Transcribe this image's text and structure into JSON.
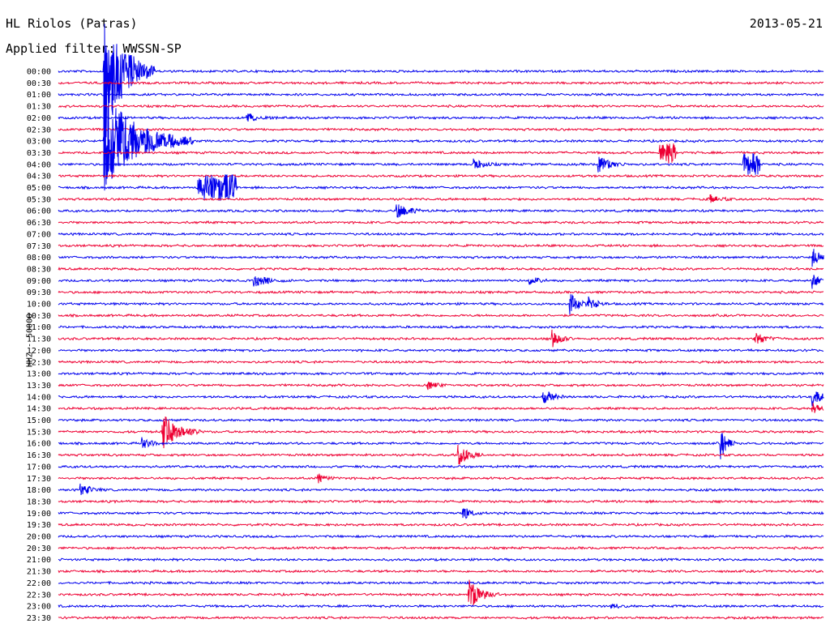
{
  "header": {
    "station": "HL Riolos (Patras)",
    "date": "2013-05-21",
    "filter": "Applied filter: WWSSN-SP"
  },
  "chart_data": {
    "type": "line",
    "title": "HL Riolos (Patras)",
    "subtitle": "Applied filter: WWSSN-SP",
    "ylabel": "HHZ - 50000",
    "xlabel": "",
    "rows": [
      "00:00",
      "00:30",
      "01:00",
      "01:30",
      "02:00",
      "02:30",
      "03:00",
      "03:30",
      "04:00",
      "04:30",
      "05:00",
      "05:30",
      "06:00",
      "06:30",
      "07:00",
      "07:30",
      "08:00",
      "08:30",
      "09:00",
      "09:30",
      "10:00",
      "10:30",
      "11:00",
      "11:30",
      "12:00",
      "12:30",
      "13:00",
      "13:30",
      "14:00",
      "14:30",
      "15:00",
      "15:30",
      "16:00",
      "16:30",
      "17:00",
      "17:30",
      "18:00",
      "18:30",
      "19:00",
      "19:30",
      "20:00",
      "20:30",
      "21:00",
      "21:30",
      "22:00",
      "22:30",
      "23:00",
      "23:30"
    ],
    "series_colors": [
      "#0000ee",
      "#ee0033"
    ],
    "row_minutes": 30,
    "events": [
      {
        "row": 0,
        "minute": 1.8,
        "amp": 90,
        "dur": 2.0
      },
      {
        "row": 6,
        "minute": 1.8,
        "amp": 60,
        "dur": 3.5
      },
      {
        "row": 4,
        "minute": 7.4,
        "amp": 5,
        "dur": 1.2
      },
      {
        "row": 8,
        "minute": 16.3,
        "amp": 6,
        "dur": 1.0
      },
      {
        "row": 8,
        "minute": 21.2,
        "amp": 9,
        "dur": 1.2
      },
      {
        "row": 10,
        "minute": 5.5,
        "amp": 15,
        "dur": 1.5,
        "block": true
      },
      {
        "row": 7,
        "minute": 23.6,
        "amp": 12,
        "dur": 0.6,
        "block": true
      },
      {
        "row": 8,
        "minute": 26.9,
        "amp": 13,
        "dur": 0.6,
        "block": true
      },
      {
        "row": 11,
        "minute": 25.5,
        "amp": 5,
        "dur": 1.0
      },
      {
        "row": 12,
        "minute": 13.3,
        "amp": 8,
        "dur": 1.2
      },
      {
        "row": 16,
        "minute": 29.6,
        "amp": 10,
        "dur": 0.8
      },
      {
        "row": 18,
        "minute": 7.7,
        "amp": 6,
        "dur": 1.5
      },
      {
        "row": 18,
        "minute": 18.5,
        "amp": 6,
        "dur": 0.8
      },
      {
        "row": 18,
        "minute": 29.6,
        "amp": 8,
        "dur": 0.6
      },
      {
        "row": 20,
        "minute": 20.1,
        "amp": 12,
        "dur": 0.8
      },
      {
        "row": 20,
        "minute": 20.8,
        "amp": 8,
        "dur": 0.8
      },
      {
        "row": 23,
        "minute": 19.4,
        "amp": 9,
        "dur": 0.8
      },
      {
        "row": 23,
        "minute": 27.3,
        "amp": 7,
        "dur": 1.2
      },
      {
        "row": 27,
        "minute": 14.5,
        "amp": 5,
        "dur": 1.0
      },
      {
        "row": 28,
        "minute": 19.0,
        "amp": 12,
        "dur": 0.8
      },
      {
        "row": 28,
        "minute": 29.6,
        "amp": 10,
        "dur": 0.8
      },
      {
        "row": 29,
        "minute": 29.6,
        "amp": 6,
        "dur": 0.8
      },
      {
        "row": 31,
        "minute": 4.1,
        "amp": 22,
        "dur": 1.5
      },
      {
        "row": 32,
        "minute": 3.3,
        "amp": 7,
        "dur": 0.8
      },
      {
        "row": 32,
        "minute": 26.0,
        "amp": 16,
        "dur": 0.6
      },
      {
        "row": 33,
        "minute": 15.7,
        "amp": 13,
        "dur": 1.0
      },
      {
        "row": 35,
        "minute": 10.2,
        "amp": 5,
        "dur": 1.0
      },
      {
        "row": 36,
        "minute": 0.9,
        "amp": 6,
        "dur": 1.0
      },
      {
        "row": 38,
        "minute": 15.9,
        "amp": 7,
        "dur": 0.8
      },
      {
        "row": 45,
        "minute": 16.1,
        "amp": 18,
        "dur": 1.2
      },
      {
        "row": 46,
        "minute": 21.7,
        "amp": 3,
        "dur": 0.8
      }
    ]
  }
}
